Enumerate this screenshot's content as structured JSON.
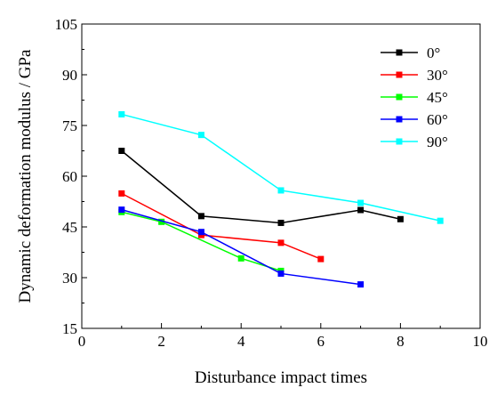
{
  "chart_data": {
    "type": "line",
    "xlabel": "Disturbance impact times",
    "ylabel": "Dynamic deformation modulus / GPa",
    "xlim": [
      0,
      10
    ],
    "ylim": [
      15,
      105
    ],
    "xticks": [
      0,
      2,
      4,
      6,
      8,
      10
    ],
    "yticks": [
      15,
      30,
      45,
      60,
      75,
      90,
      105
    ],
    "grid": false,
    "legend_position": "top-right",
    "marker": "square",
    "series": [
      {
        "name": "0°",
        "color": "#000000",
        "x": [
          1,
          3,
          5,
          7,
          8
        ],
        "y": [
          67.5,
          48.2,
          46.2,
          50.0,
          47.3
        ]
      },
      {
        "name": "30°",
        "color": "#ff0000",
        "x": [
          1,
          3,
          5,
          6
        ],
        "y": [
          54.9,
          42.6,
          40.3,
          35.5
        ]
      },
      {
        "name": "45°",
        "color": "#00ff00",
        "x": [
          1,
          2,
          4,
          5
        ],
        "y": [
          49.4,
          46.5,
          35.7,
          32.0
        ]
      },
      {
        "name": "60°",
        "color": "#0000ff",
        "x": [
          1,
          3,
          5,
          7
        ],
        "y": [
          50.1,
          43.5,
          31.2,
          28.0
        ]
      },
      {
        "name": "90°",
        "color": "#00ffff",
        "x": [
          1,
          3,
          5,
          7,
          9
        ],
        "y": [
          78.3,
          72.2,
          55.8,
          52.1,
          46.8
        ]
      }
    ]
  }
}
